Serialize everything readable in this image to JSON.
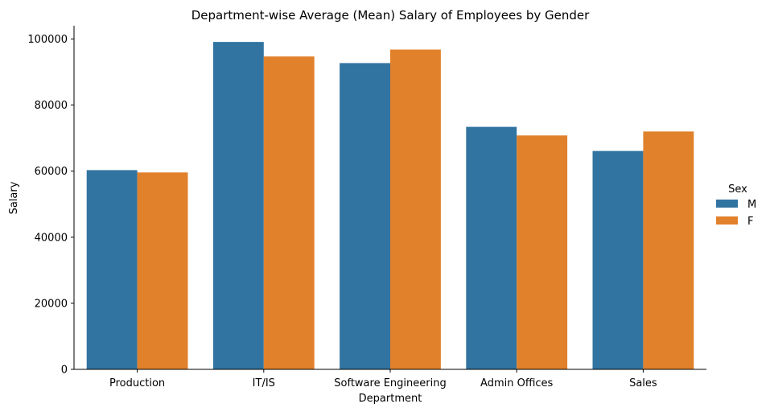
{
  "chart_data": {
    "type": "bar",
    "title": "Department-wise Average (Mean) Salary of Employees by Gender",
    "xlabel": "Department",
    "ylabel": "Salary",
    "categories": [
      "Production",
      "IT/IS",
      "Software Engineering",
      "Admin Offices",
      "Sales"
    ],
    "series": [
      {
        "name": "M",
        "color": "#3274a1",
        "values": [
          60300,
          99100,
          92700,
          73400,
          66100
        ]
      },
      {
        "name": "F",
        "color": "#e1812c",
        "values": [
          59600,
          94700,
          96800,
          70800,
          72000
        ]
      }
    ],
    "ylim": [
      0,
      104000
    ],
    "yticks": [
      0,
      20000,
      40000,
      60000,
      80000,
      100000
    ],
    "grid": false,
    "legend": {
      "title": "Sex",
      "placement": "right"
    }
  }
}
